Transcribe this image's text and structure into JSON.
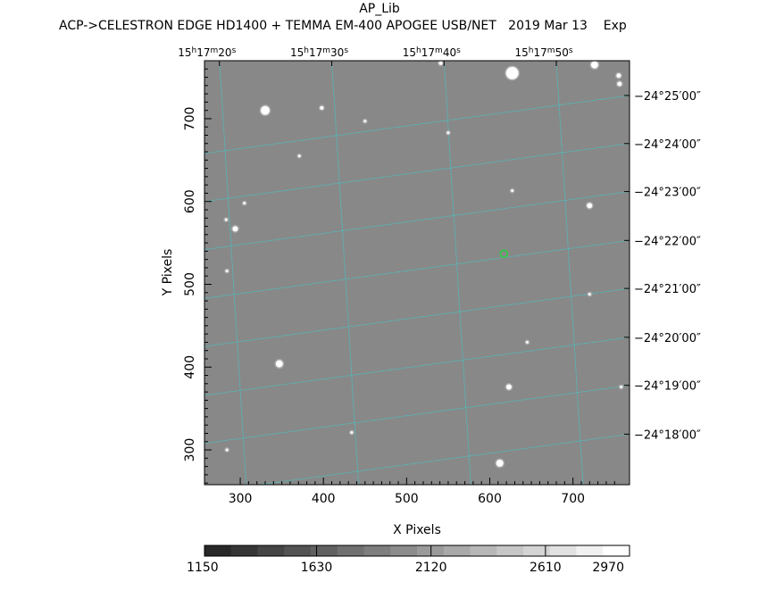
{
  "header": {
    "title": "AP_Lib",
    "subtitle": "ACP->CELESTRON EDGE HD1400 + TEMMA EM-400 APOGEE USB/NET   2019 Mar 13    Exp"
  },
  "chart_data": {
    "type": "heatmap",
    "xlabel": "X Pixels",
    "ylabel": "Y Pixels",
    "xlim": [
      257,
      768
    ],
    "ylim": [
      258,
      770
    ],
    "x_ticks": [
      300,
      400,
      500,
      600,
      700
    ],
    "x_tick_labels": [
      "300",
      "400",
      "500",
      "600",
      "700"
    ],
    "y_ticks": [
      300,
      400,
      500,
      600,
      700
    ],
    "y_tick_labels": [
      "300",
      "400",
      "500",
      "600",
      "700"
    ],
    "ra_labels": [
      {
        "x": 275,
        "h": "15",
        "m": "17",
        "s": "20"
      },
      {
        "x": 410,
        "h": "15",
        "m": "17",
        "s": "30"
      },
      {
        "x": 545,
        "h": "15",
        "m": "17",
        "s": "40"
      },
      {
        "x": 680,
        "h": "15",
        "m": "17",
        "s": "50"
      }
    ],
    "dec_labels": [
      {
        "y": 728,
        "text": "−24°25′00″"
      },
      {
        "y": 670,
        "text": "−24°24′00″"
      },
      {
        "y": 612,
        "text": "−24°23′00″"
      },
      {
        "y": 553,
        "text": "−24°22′00″"
      },
      {
        "y": 495,
        "text": "−24°21′00″"
      },
      {
        "y": 436,
        "text": "−24°20′00″"
      },
      {
        "y": 378,
        "text": "−24°19′00″"
      },
      {
        "y": 319,
        "text": "−24°18′00″"
      }
    ],
    "colorbar": {
      "min": 1150,
      "max": 2970,
      "tick_values": [
        1150,
        1630,
        2120,
        2610,
        2970
      ],
      "tick_labels": [
        "1150",
        "1630",
        "2120",
        "2610",
        "2970"
      ],
      "steps": 16
    },
    "grid": true,
    "colors": {
      "background": "#888888",
      "grid_line": "#39d0d0",
      "star": "#ffffff",
      "target_marker": "#2ecc40"
    },
    "stars": [
      {
        "x": 627,
        "y": 755,
        "r": 7
      },
      {
        "x": 330,
        "y": 710,
        "r": 5
      },
      {
        "x": 726,
        "y": 765,
        "r": 4
      },
      {
        "x": 347,
        "y": 404,
        "r": 4
      },
      {
        "x": 612,
        "y": 284,
        "r": 4
      },
      {
        "x": 294,
        "y": 567,
        "r": 3
      },
      {
        "x": 623,
        "y": 376,
        "r": 3
      },
      {
        "x": 720,
        "y": 595,
        "r": 3
      },
      {
        "x": 755,
        "y": 752,
        "r": 2.5
      },
      {
        "x": 756,
        "y": 742,
        "r": 2.5
      },
      {
        "x": 541,
        "y": 767,
        "r": 2
      },
      {
        "x": 398,
        "y": 713,
        "r": 2
      },
      {
        "x": 550,
        "y": 683,
        "r": 1.5
      },
      {
        "x": 371,
        "y": 655,
        "r": 1.5
      },
      {
        "x": 450,
        "y": 697,
        "r": 1.5
      },
      {
        "x": 284,
        "y": 516,
        "r": 1.5
      },
      {
        "x": 758,
        "y": 376,
        "r": 1.5
      },
      {
        "x": 434,
        "y": 321,
        "r": 1.5
      },
      {
        "x": 283,
        "y": 578,
        "r": 1.5
      },
      {
        "x": 627,
        "y": 613,
        "r": 1.5
      },
      {
        "x": 720,
        "y": 488,
        "r": 1.5
      },
      {
        "x": 645,
        "y": 430,
        "r": 1.5
      },
      {
        "x": 284,
        "y": 300,
        "r": 1.5
      },
      {
        "x": 305,
        "y": 598,
        "r": 1.5
      }
    ],
    "target": {
      "x": 617,
      "y": 537
    }
  }
}
